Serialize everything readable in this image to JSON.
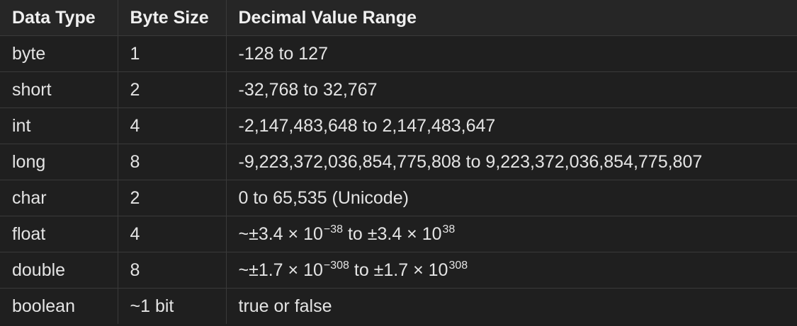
{
  "table": {
    "headers": [
      "Data Type",
      "Byte Size",
      "Decimal Value Range"
    ],
    "rows": [
      {
        "type": "byte",
        "size": "1",
        "range": "-128 to 127"
      },
      {
        "type": "short",
        "size": "2",
        "range": "-32,768 to 32,767"
      },
      {
        "type": "int",
        "size": "4",
        "range": "-2,147,483,648 to 2,147,483,647"
      },
      {
        "type": "long",
        "size": "8",
        "range": "-9,223,372,036,854,775,808 to 9,223,372,036,854,775,807"
      },
      {
        "type": "char",
        "size": "2",
        "range": "0 to 65,535 (Unicode)"
      },
      {
        "type": "float",
        "size": "4",
        "range_parts": {
          "prefix": "~±3.4 × 10",
          "exp1": "−38",
          "mid": " to ±3.4 × 10",
          "exp2": "38"
        }
      },
      {
        "type": "double",
        "size": "8",
        "range_parts": {
          "prefix": "~±1.7 × 10",
          "exp1": "−308",
          "mid": " to ±1.7 × 10",
          "exp2": "308"
        }
      },
      {
        "type": "boolean",
        "size": "~1 bit",
        "range": "true or false"
      }
    ]
  }
}
